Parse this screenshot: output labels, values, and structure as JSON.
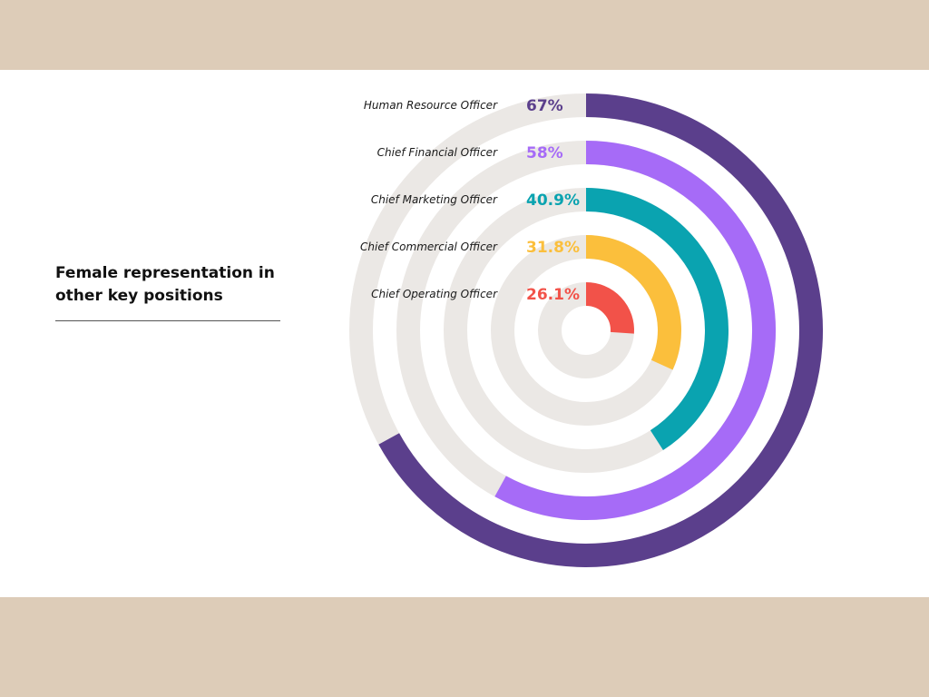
{
  "heading": {
    "line1": "Female representation in",
    "line2": "other key positions"
  },
  "colors": {
    "background_band": "#ddccb8",
    "panel": "#ffffff",
    "track": "#ebe8e5"
  },
  "chart_data": {
    "type": "radial-bar",
    "title": "Female representation in other key positions",
    "unit": "%",
    "max": 100,
    "categories": [
      "Human Resource Officer",
      "Chief Financial Officer",
      "Chief Marketing Officer",
      "Chief Commercial Officer",
      "Chief Operating Officer"
    ],
    "values": [
      67,
      58,
      40.9,
      31.8,
      26.1
    ],
    "value_labels": [
      "67%",
      "58%",
      "40.9%",
      "31.8%",
      "26.1%"
    ],
    "colors": [
      "#5b3f8c",
      "#a66bf7",
      "#0aa3b0",
      "#fbbf3c",
      "#f25249"
    ]
  }
}
